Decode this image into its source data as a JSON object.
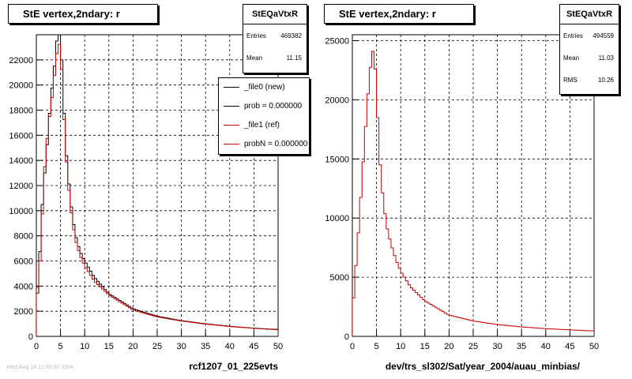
{
  "chart_data": [
    {
      "type": "histogram",
      "title": "StE  vertex,2ndary: r",
      "xlabel": "rcf1207_01_225evts",
      "ylabel": "",
      "xlim": [
        0,
        50
      ],
      "ylim": [
        0,
        24000
      ],
      "xticks": [
        0,
        5,
        10,
        15,
        20,
        25,
        30,
        35,
        40,
        45,
        50
      ],
      "yticks": [
        0,
        2000,
        4000,
        6000,
        8000,
        10000,
        12000,
        14000,
        16000,
        18000,
        20000,
        22000
      ],
      "grid": true,
      "stats": {
        "name": "StEQaVtxR",
        "rows": [
          {
            "label": "Entries",
            "value": "469382"
          },
          {
            "label": "Mean",
            "value": "11.15"
          }
        ]
      },
      "legend": {
        "position": "top-right",
        "entries": [
          "_file0 (new)",
          "prob = 0.000000",
          "_file1 (ref)",
          "probN = 0.000000"
        ]
      },
      "series": [
        {
          "name": "_file0 (new)",
          "color": "#000000",
          "x": [
            0,
            0.5,
            1,
            1.5,
            2,
            2.5,
            3,
            3.5,
            4,
            4.5,
            5,
            5.5,
            6,
            7,
            8,
            9,
            10,
            12,
            15,
            20,
            25,
            30,
            35,
            40,
            45,
            50
          ],
          "y": [
            2400,
            4500,
            9000,
            12000,
            14000,
            16500,
            19000,
            20500,
            22500,
            24500,
            24000,
            20000,
            15500,
            11000,
            8200,
            6800,
            6000,
            4700,
            3400,
            2200,
            1600,
            1250,
            1000,
            800,
            650,
            550
          ]
        },
        {
          "name": "_file1 (ref)",
          "color": "#cc0000",
          "x": [
            0,
            0.5,
            1,
            1.5,
            2,
            2.5,
            3,
            3.5,
            4,
            4.5,
            5,
            5.5,
            6,
            7,
            8,
            9,
            10,
            12,
            15,
            20,
            25,
            30,
            35,
            40,
            45,
            50
          ],
          "y": [
            2800,
            5000,
            7000,
            12500,
            14500,
            17000,
            18000,
            20000,
            21500,
            23500,
            23000,
            19500,
            15000,
            10500,
            7800,
            6500,
            5600,
            4400,
            3300,
            2100,
            1550,
            1220,
            980,
            780,
            640,
            520
          ]
        }
      ]
    },
    {
      "type": "histogram",
      "title": "StE  vertex,2ndary: r",
      "xlabel": "dev/trs_sl302/Sat/year_2004/auau_minbias/",
      "ylabel": "",
      "xlim": [
        0,
        50
      ],
      "ylim": [
        0,
        25500
      ],
      "xticks": [
        0,
        5,
        10,
        15,
        20,
        25,
        30,
        35,
        40,
        45,
        50
      ],
      "yticks": [
        0,
        5000,
        10000,
        15000,
        20000,
        25000
      ],
      "grid": true,
      "stats": {
        "name": "StEQaVtxR",
        "rows": [
          {
            "label": "Entries",
            "value": "494559"
          },
          {
            "label": "Mean",
            "value": "11.03"
          },
          {
            "label": "RMS",
            "value": "10.26"
          }
        ]
      },
      "series": [
        {
          "name": "",
          "color": "#cc0000",
          "x": [
            0,
            0.5,
            1,
            1.5,
            2,
            2.5,
            3,
            3.5,
            4,
            4.5,
            5,
            5.5,
            6,
            7,
            8,
            9,
            10,
            12,
            15,
            20,
            25,
            30,
            35,
            40,
            45,
            50
          ],
          "y": [
            2000,
            4500,
            7500,
            10000,
            13500,
            16000,
            19500,
            21500,
            24000,
            24200,
            21000,
            16000,
            13000,
            9500,
            7800,
            6500,
            5500,
            4200,
            3000,
            1800,
            1300,
            1000,
            800,
            650,
            550,
            450
          ]
        }
      ]
    }
  ],
  "footer": "Wed Aug 18 12:00:00 2004"
}
